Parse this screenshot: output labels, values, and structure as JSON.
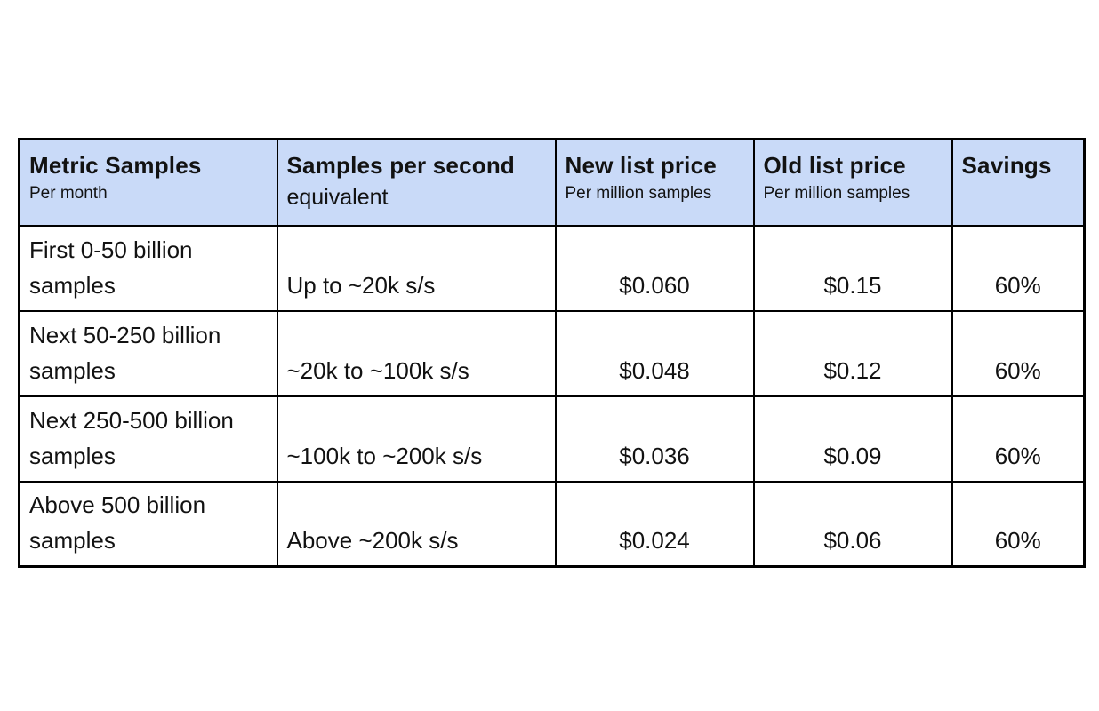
{
  "colors": {
    "page_bg": "#ffffff",
    "header_bg": "#c9daf8",
    "highlight_bg": "#d9ead3",
    "border": "#000000",
    "text": "#121212"
  },
  "table": {
    "header": {
      "metric": {
        "title": "Metric Samples",
        "subtitle": "Per month"
      },
      "rate": {
        "title": "Samples per second",
        "subtitle": "equivalent"
      },
      "new_price": {
        "title": "New list price",
        "subtitle": "Per million samples"
      },
      "old_price": {
        "title": "Old list price",
        "subtitle": "Per million samples"
      },
      "savings": {
        "title": "Savings"
      }
    },
    "rows": [
      {
        "metric": "First 0-50 billion samples",
        "rate": "Up to ~20k s/s",
        "new_price": "$0.060",
        "old_price": "$0.15",
        "savings": "60%"
      },
      {
        "metric": "Next 50-250 billion samples",
        "rate": "~20k to ~100k s/s",
        "new_price": "$0.048",
        "old_price": "$0.12",
        "savings": "60%"
      },
      {
        "metric": "Next 250-500 billion samples",
        "rate": "~100k to ~200k s/s",
        "new_price": "$0.036",
        "old_price": "$0.09",
        "savings": "60%"
      },
      {
        "metric": "Above 500 billion samples",
        "rate": "Above ~200k s/s",
        "new_price": "$0.024",
        "old_price": "$0.06",
        "savings": "60%"
      }
    ]
  }
}
